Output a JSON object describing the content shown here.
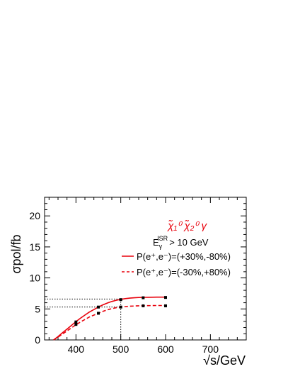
{
  "chart_data": {
    "type": "line",
    "title": "",
    "xlabel": "√s/GeV",
    "ylabel": "σpol/fb",
    "xlim": [
      330,
      780
    ],
    "ylim": [
      0,
      23
    ],
    "xticks": [
      400,
      500,
      600,
      700
    ],
    "yticks": [
      0,
      5,
      10,
      15,
      20
    ],
    "grid": false,
    "legend_position": "top-right",
    "annotation": {
      "process": "χ̃₁⁰ χ̃₂⁰ γ",
      "cut": "EγISR > 10 GeV",
      "cut_parts": {
        "base": "E",
        "sub": "γ",
        "sup": "ISR",
        "rest": "> 10 GeV"
      }
    },
    "reference_lines": {
      "x": 500,
      "y_values": [
        6.6,
        5.3
      ]
    },
    "series": [
      {
        "name": "P(e⁺,e⁻)=(+30%,-80%)",
        "color": "#e8000b",
        "style": "solid",
        "points_x": [
          400,
          450,
          500,
          550,
          600
        ],
        "points_y": [
          2.9,
          5.3,
          6.5,
          6.8,
          6.85
        ],
        "curve_x": [
          350,
          360,
          370,
          380,
          390,
          400,
          410,
          420,
          430,
          440,
          450,
          460,
          470,
          480,
          490,
          500,
          510,
          520,
          530,
          540,
          550,
          560,
          570,
          580,
          590,
          600
        ],
        "curve_y": [
          0.0,
          0.55,
          1.15,
          1.75,
          2.35,
          2.95,
          3.5,
          4.0,
          4.5,
          4.9,
          5.3,
          5.65,
          5.95,
          6.2,
          6.4,
          6.55,
          6.66,
          6.74,
          6.8,
          6.84,
          6.86,
          6.88,
          6.89,
          6.9,
          6.9,
          6.9
        ]
      },
      {
        "name": "P(e⁺,e⁻)=(-30%,+80%)",
        "color": "#e8000b",
        "style": "dashed",
        "points_x": [
          400,
          450,
          500,
          550,
          600
        ],
        "points_y": [
          2.5,
          4.3,
          5.3,
          5.5,
          5.5
        ],
        "curve_x": [
          350,
          360,
          370,
          380,
          390,
          400,
          410,
          420,
          430,
          440,
          450,
          460,
          470,
          480,
          490,
          500,
          510,
          520,
          530,
          540,
          550,
          560,
          570,
          580,
          590,
          600
        ],
        "curve_y": [
          0.0,
          0.45,
          0.95,
          1.45,
          1.95,
          2.45,
          2.9,
          3.3,
          3.7,
          4.0,
          4.3,
          4.6,
          4.85,
          5.05,
          5.2,
          5.3,
          5.38,
          5.43,
          5.47,
          5.5,
          5.52,
          5.53,
          5.54,
          5.55,
          5.55,
          5.55
        ]
      }
    ]
  }
}
